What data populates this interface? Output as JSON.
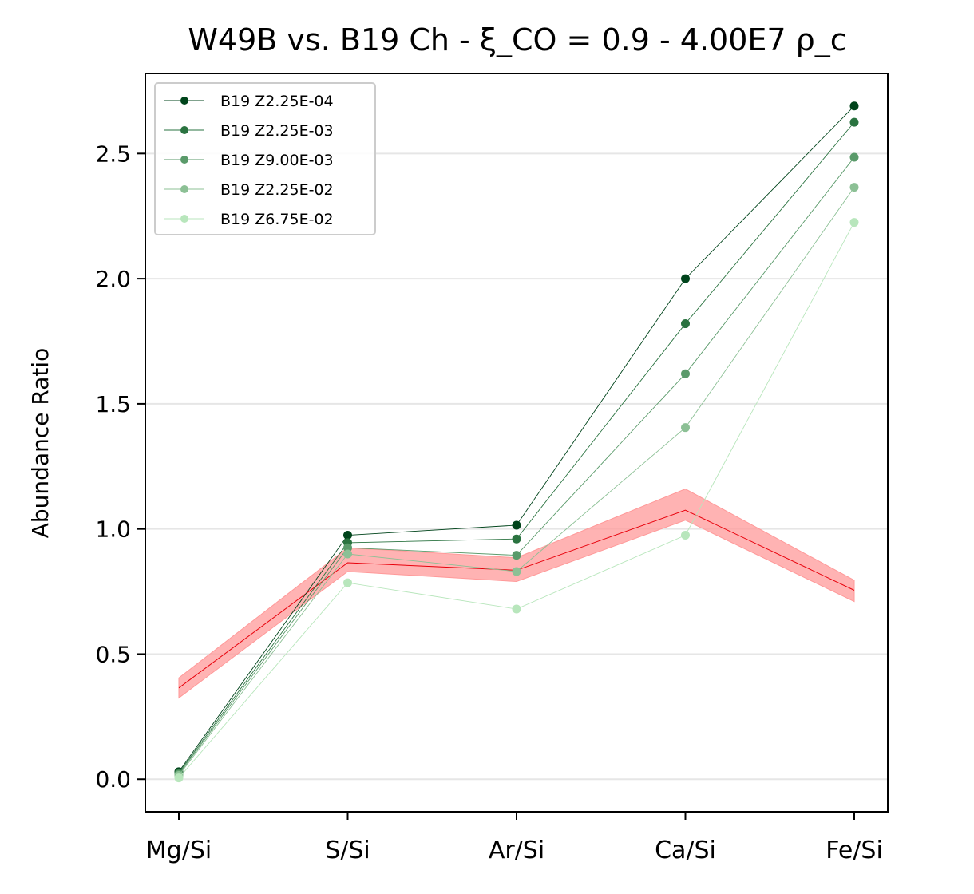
{
  "chart_data": {
    "type": "line",
    "title": "W49B vs. B19 Ch - ξ_CO = 0.9 - 4.00E7 ρ_c",
    "xlabel": "",
    "ylabel": "Abundance Ratio",
    "categories": [
      "Mg/Si",
      "S/Si",
      "Ar/Si",
      "Ca/Si",
      "Fe/Si"
    ],
    "ylim": [
      -0.13,
      2.82
    ],
    "yticks": [
      0.0,
      0.5,
      1.0,
      1.5,
      2.0,
      2.5
    ],
    "ytick_labels": [
      "0.0",
      "0.5",
      "1.0",
      "1.5",
      "2.0",
      "2.5"
    ],
    "grid": "horizontal",
    "legend_position": "top-left",
    "series": [
      {
        "name": "B19 Z2.25E-04",
        "color": "#00441b",
        "values": [
          0.03,
          0.975,
          1.015,
          2.0,
          2.69
        ]
      },
      {
        "name": "B19 Z2.25E-03",
        "color": "#2a7340",
        "values": [
          0.025,
          0.945,
          0.96,
          1.82,
          2.625
        ]
      },
      {
        "name": "B19 Z9.00E-03",
        "color": "#5a9a6a",
        "values": [
          0.02,
          0.925,
          0.895,
          1.62,
          2.485
        ]
      },
      {
        "name": "B19 Z2.25E-02",
        "color": "#8cc095",
        "values": [
          0.015,
          0.9,
          0.83,
          1.405,
          2.365
        ]
      },
      {
        "name": "B19 Z6.75E-02",
        "color": "#b8e6bc",
        "values": [
          0.005,
          0.785,
          0.68,
          0.975,
          2.225
        ]
      }
    ],
    "observed": {
      "name": "W49B",
      "color": "#e8000b",
      "band_color": "#ff9999",
      "values": [
        0.365,
        0.865,
        0.835,
        1.075,
        0.755
      ],
      "lower": [
        0.325,
        0.83,
        0.79,
        1.035,
        0.71
      ],
      "upper": [
        0.405,
        0.925,
        0.885,
        1.16,
        0.795
      ]
    }
  }
}
